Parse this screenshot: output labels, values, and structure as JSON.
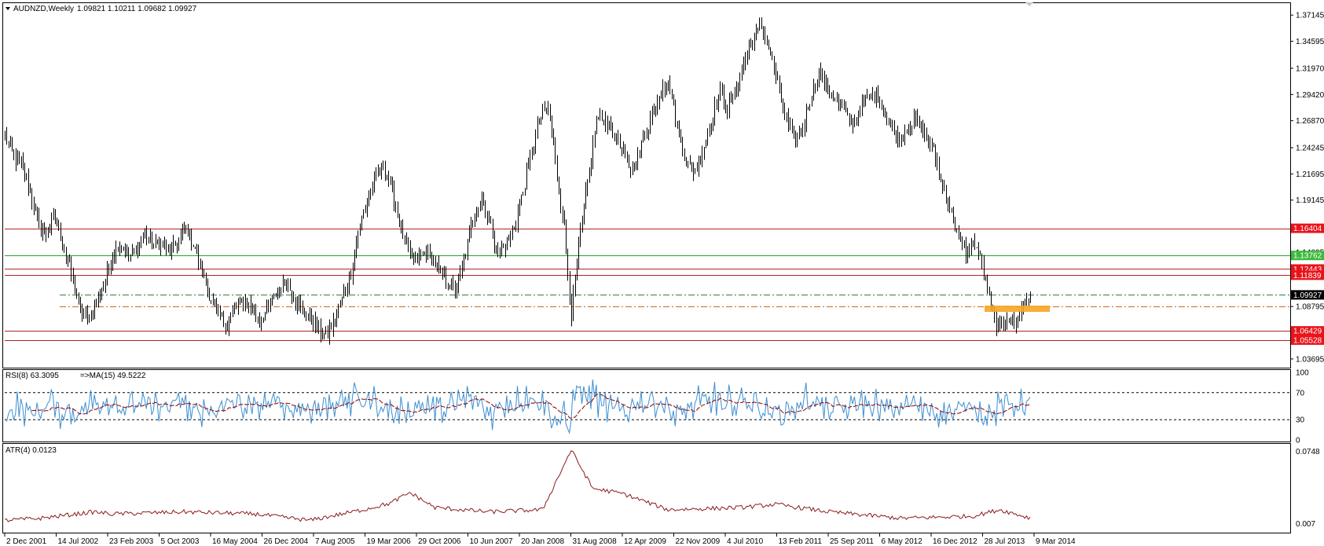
{
  "header": {
    "symbol": "AUDNZD,Weekly",
    "ohlc": "1.09821 1.10211 1.09682 1.09927"
  },
  "indicators": {
    "rsi_label": "RSI(8) 63.3095",
    "rsi_ma_label": "=>MA(15) 49.5222",
    "atr_label": "ATR(4) 0.0123"
  },
  "colors": {
    "bars": "#000000",
    "resistance": "#b22222",
    "support_green": "#2ca02c",
    "rsi_line": "#3d8fd1",
    "rsi_ma": "#8b0000",
    "atr_line": "#8b1a1a",
    "highlight": "#f5a623",
    "price_tag_red": "#e8141b",
    "price_tag_green": "#3cba3c",
    "price_tag_black": "#000000"
  },
  "chart_data": [
    {
      "type": "ohlc",
      "title": "AUDNZD,Weekly",
      "x_labels": [
        "2 Dec 2001",
        "14 Jul 2002",
        "23 Feb 2003",
        "5 Oct 2003",
        "16 May 2004",
        "26 Dec 2004",
        "7 Aug 2005",
        "19 Mar 2006",
        "29 Oct 2006",
        "10 Jun 2007",
        "20 Jan 2008",
        "31 Aug 2008",
        "12 Apr 2009",
        "22 Nov 2009",
        "4 Jul 2010",
        "13 Feb 2011",
        "25 Sep 2011",
        "6 May 2012",
        "16 Dec 2012",
        "28 Jul 2013",
        "9 Mar 2014"
      ],
      "y_ticks": [
        "1.37145",
        "1.34595",
        "1.31970",
        "1.29420",
        "1.26870",
        "1.24245",
        "1.21695",
        "1.19145",
        "1.14095",
        "1.08795",
        "1.03695"
      ],
      "ylim": [
        1.03,
        1.38
      ],
      "close_path": [
        {
          "t": 0,
          "v": 1.255
        },
        {
          "t": 5,
          "v": 1.232
        },
        {
          "t": 10,
          "v": 1.225
        },
        {
          "t": 14,
          "v": 1.2
        },
        {
          "t": 19,
          "v": 1.165
        },
        {
          "t": 23,
          "v": 1.16
        },
        {
          "t": 28,
          "v": 1.175
        },
        {
          "t": 32,
          "v": 1.15
        },
        {
          "t": 37,
          "v": 1.12
        },
        {
          "t": 42,
          "v": 1.085
        },
        {
          "t": 46,
          "v": 1.075
        },
        {
          "t": 50,
          "v": 1.09
        },
        {
          "t": 55,
          "v": 1.11
        },
        {
          "t": 60,
          "v": 1.138
        },
        {
          "t": 64,
          "v": 1.15
        },
        {
          "t": 69,
          "v": 1.135
        },
        {
          "t": 74,
          "v": 1.145
        },
        {
          "t": 78,
          "v": 1.16
        },
        {
          "t": 83,
          "v": 1.145
        },
        {
          "t": 87,
          "v": 1.15
        },
        {
          "t": 92,
          "v": 1.14
        },
        {
          "t": 96,
          "v": 1.15
        },
        {
          "t": 101,
          "v": 1.165
        },
        {
          "t": 106,
          "v": 1.145
        },
        {
          "t": 110,
          "v": 1.12
        },
        {
          "t": 115,
          "v": 1.095
        },
        {
          "t": 119,
          "v": 1.08
        },
        {
          "t": 124,
          "v": 1.07
        },
        {
          "t": 128,
          "v": 1.085
        },
        {
          "t": 133,
          "v": 1.095
        },
        {
          "t": 138,
          "v": 1.085
        },
        {
          "t": 142,
          "v": 1.075
        },
        {
          "t": 147,
          "v": 1.085
        },
        {
          "t": 151,
          "v": 1.1
        },
        {
          "t": 156,
          "v": 1.112
        },
        {
          "t": 161,
          "v": 1.1
        },
        {
          "t": 165,
          "v": 1.085
        },
        {
          "t": 170,
          "v": 1.08
        },
        {
          "t": 174,
          "v": 1.068
        },
        {
          "t": 179,
          "v": 1.058
        },
        {
          "t": 184,
          "v": 1.075
        },
        {
          "t": 188,
          "v": 1.095
        },
        {
          "t": 193,
          "v": 1.12
        },
        {
          "t": 197,
          "v": 1.16
        },
        {
          "t": 202,
          "v": 1.19
        },
        {
          "t": 207,
          "v": 1.215
        },
        {
          "t": 211,
          "v": 1.225
        },
        {
          "t": 216,
          "v": 1.2
        },
        {
          "t": 220,
          "v": 1.17
        },
        {
          "t": 225,
          "v": 1.14
        },
        {
          "t": 229,
          "v": 1.132
        },
        {
          "t": 234,
          "v": 1.14
        },
        {
          "t": 239,
          "v": 1.132
        },
        {
          "t": 243,
          "v": 1.12
        },
        {
          "t": 248,
          "v": 1.11
        },
        {
          "t": 252,
          "v": 1.105
        },
        {
          "t": 257,
          "v": 1.14
        },
        {
          "t": 261,
          "v": 1.175
        },
        {
          "t": 266,
          "v": 1.195
        },
        {
          "t": 271,
          "v": 1.165
        },
        {
          "t": 275,
          "v": 1.14
        },
        {
          "t": 280,
          "v": 1.15
        },
        {
          "t": 284,
          "v": 1.165
        },
        {
          "t": 289,
          "v": 1.2
        },
        {
          "t": 294,
          "v": 1.24
        },
        {
          "t": 298,
          "v": 1.27
        },
        {
          "t": 303,
          "v": 1.282
        },
        {
          "t": 307,
          "v": 1.23
        },
        {
          "t": 312,
          "v": 1.165
        },
        {
          "t": 316,
          "v": 1.08
        },
        {
          "t": 321,
          "v": 1.16
        },
        {
          "t": 326,
          "v": 1.22
        },
        {
          "t": 330,
          "v": 1.27
        },
        {
          "t": 335,
          "v": 1.27
        },
        {
          "t": 339,
          "v": 1.258
        },
        {
          "t": 344,
          "v": 1.24
        },
        {
          "t": 349,
          "v": 1.22
        },
        {
          "t": 353,
          "v": 1.235
        },
        {
          "t": 358,
          "v": 1.26
        },
        {
          "t": 362,
          "v": 1.28
        },
        {
          "t": 367,
          "v": 1.305
        },
        {
          "t": 371,
          "v": 1.3
        },
        {
          "t": 376,
          "v": 1.255
        },
        {
          "t": 381,
          "v": 1.225
        },
        {
          "t": 385,
          "v": 1.22
        },
        {
          "t": 390,
          "v": 1.245
        },
        {
          "t": 394,
          "v": 1.27
        },
        {
          "t": 399,
          "v": 1.3
        },
        {
          "t": 403,
          "v": 1.28
        },
        {
          "t": 408,
          "v": 1.3
        },
        {
          "t": 413,
          "v": 1.33
        },
        {
          "t": 417,
          "v": 1.35
        },
        {
          "t": 422,
          "v": 1.36
        },
        {
          "t": 426,
          "v": 1.34
        },
        {
          "t": 431,
          "v": 1.305
        },
        {
          "t": 435,
          "v": 1.275
        },
        {
          "t": 440,
          "v": 1.25
        },
        {
          "t": 445,
          "v": 1.26
        },
        {
          "t": 449,
          "v": 1.29
        },
        {
          "t": 454,
          "v": 1.315
        },
        {
          "t": 458,
          "v": 1.305
        },
        {
          "t": 463,
          "v": 1.29
        },
        {
          "t": 467,
          "v": 1.282
        },
        {
          "t": 472,
          "v": 1.265
        },
        {
          "t": 477,
          "v": 1.28
        },
        {
          "t": 481,
          "v": 1.29
        },
        {
          "t": 486,
          "v": 1.295
        },
        {
          "t": 490,
          "v": 1.28
        },
        {
          "t": 495,
          "v": 1.262
        },
        {
          "t": 499,
          "v": 1.25
        },
        {
          "t": 504,
          "v": 1.265
        },
        {
          "t": 509,
          "v": 1.268
        },
        {
          "t": 513,
          "v": 1.255
        },
        {
          "t": 518,
          "v": 1.24
        },
        {
          "t": 522,
          "v": 1.21
        },
        {
          "t": 527,
          "v": 1.185
        },
        {
          "t": 531,
          "v": 1.16
        },
        {
          "t": 536,
          "v": 1.14
        },
        {
          "t": 541,
          "v": 1.15
        },
        {
          "t": 545,
          "v": 1.13
        },
        {
          "t": 550,
          "v": 1.085
        },
        {
          "t": 554,
          "v": 1.065
        },
        {
          "t": 559,
          "v": 1.08
        },
        {
          "t": 563,
          "v": 1.07
        },
        {
          "t": 568,
          "v": 1.09
        },
        {
          "t": 572,
          "v": 1.099
        }
      ],
      "levels": [
        {
          "price": 1.16404,
          "label": "1.16404",
          "style": "solid",
          "color": "#b22222",
          "tag": "#e8141b"
        },
        {
          "price": 1.13762,
          "label": "1.13762",
          "style": "solid",
          "color": "#2ca02c",
          "tag": "#3cba3c"
        },
        {
          "price": 1.12443,
          "label": "1.12443",
          "style": "solid",
          "color": "#b22222",
          "tag": "#e8141b"
        },
        {
          "price": 1.11839,
          "label": "1.11839",
          "style": "solid",
          "color": "#b22222",
          "tag": "#e8141b"
        },
        {
          "price": 1.09927,
          "label": "1.09927",
          "style": "dashdot",
          "color": "#2f7f3f",
          "tag": "#000000"
        },
        {
          "price": 1.08795,
          "label": "",
          "style": "dashdot",
          "color": "#d2691e",
          "tag": ""
        },
        {
          "price": 1.06429,
          "label": "1.06429",
          "style": "solid",
          "color": "#b22222",
          "tag": "#e8141b"
        },
        {
          "price": 1.05528,
          "label": "1.05528",
          "style": "solid",
          "color": "#b22222",
          "tag": "#e8141b"
        }
      ]
    },
    {
      "type": "line",
      "title": "RSI(8) 63.3095",
      "y_ticks": [
        "100",
        "70",
        "30",
        "0"
      ],
      "ylim": [
        0,
        100
      ],
      "levels": [
        70,
        30
      ],
      "last_value": 63.3095,
      "ma_last_value": 49.5222
    },
    {
      "type": "line",
      "title": "ATR(4) 0.0123",
      "y_ticks": [
        "0.0748",
        "0.007"
      ],
      "ylim": [
        0.0,
        0.078
      ],
      "path": [
        {
          "t": 0,
          "v": 0.01
        },
        {
          "t": 20,
          "v": 0.012
        },
        {
          "t": 50,
          "v": 0.018
        },
        {
          "t": 60,
          "v": 0.016
        },
        {
          "t": 100,
          "v": 0.018
        },
        {
          "t": 140,
          "v": 0.016
        },
        {
          "t": 170,
          "v": 0.01
        },
        {
          "t": 200,
          "v": 0.02
        },
        {
          "t": 215,
          "v": 0.026
        },
        {
          "t": 226,
          "v": 0.036
        },
        {
          "t": 240,
          "v": 0.022
        },
        {
          "t": 270,
          "v": 0.018
        },
        {
          "t": 300,
          "v": 0.02
        },
        {
          "t": 316,
          "v": 0.076
        },
        {
          "t": 328,
          "v": 0.04
        },
        {
          "t": 345,
          "v": 0.035
        },
        {
          "t": 370,
          "v": 0.02
        },
        {
          "t": 410,
          "v": 0.022
        },
        {
          "t": 430,
          "v": 0.025
        },
        {
          "t": 460,
          "v": 0.018
        },
        {
          "t": 500,
          "v": 0.012
        },
        {
          "t": 540,
          "v": 0.014
        },
        {
          "t": 555,
          "v": 0.02
        },
        {
          "t": 572,
          "v": 0.0123
        }
      ]
    }
  ]
}
